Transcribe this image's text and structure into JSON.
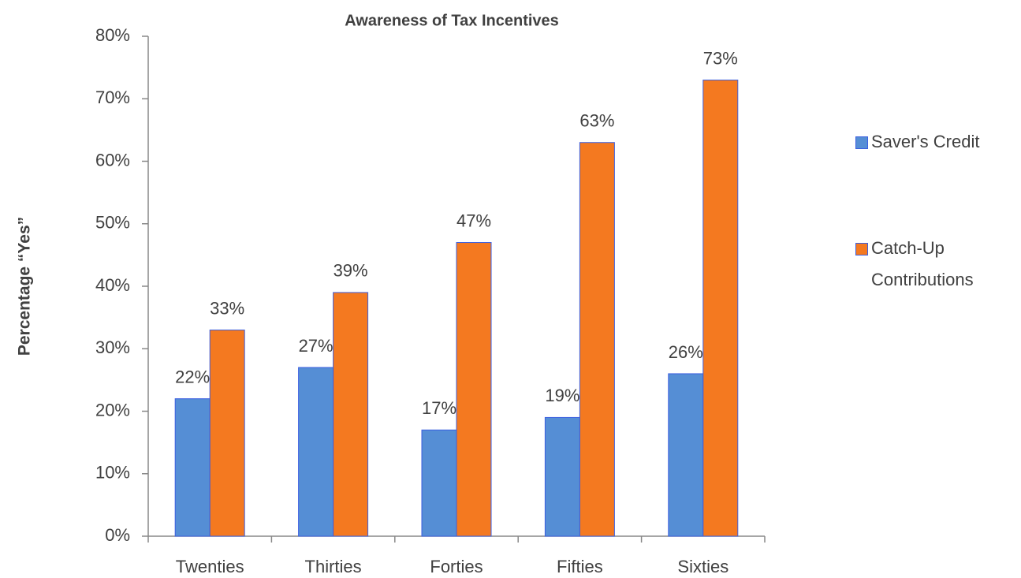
{
  "chart_data": {
    "type": "bar",
    "title": "Awareness of Tax Incentives",
    "y_label": "Percentage “Yes”",
    "categories": [
      "Twenties",
      "Thirties",
      "Forties",
      "Fifties",
      "Sixties"
    ],
    "series": [
      {
        "name": "Saver's Credit",
        "color": "#558ed5",
        "values": [
          22,
          27,
          17,
          19,
          26
        ],
        "value_labels": [
          "22%",
          "27%",
          "17%",
          "19%",
          "26%"
        ]
      },
      {
        "name": "Catch-Up Contributions",
        "color": "#f47920",
        "values": [
          33,
          39,
          47,
          63,
          73
        ],
        "value_labels": [
          "33%",
          "39%",
          "47%",
          "63%",
          "73%"
        ]
      }
    ],
    "ylim": [
      0,
      80
    ],
    "yticks": [
      {
        "value": 0,
        "label": "0%"
      },
      {
        "value": 10,
        "label": "10%"
      },
      {
        "value": 20,
        "label": "20%"
      },
      {
        "value": 30,
        "label": "30%"
      },
      {
        "value": 40,
        "label": "40%"
      },
      {
        "value": 50,
        "label": "50%"
      },
      {
        "value": 60,
        "label": "60%"
      },
      {
        "value": 70,
        "label": "70%"
      },
      {
        "value": 80,
        "label": "80%"
      }
    ],
    "grid": false,
    "legend": "right"
  }
}
